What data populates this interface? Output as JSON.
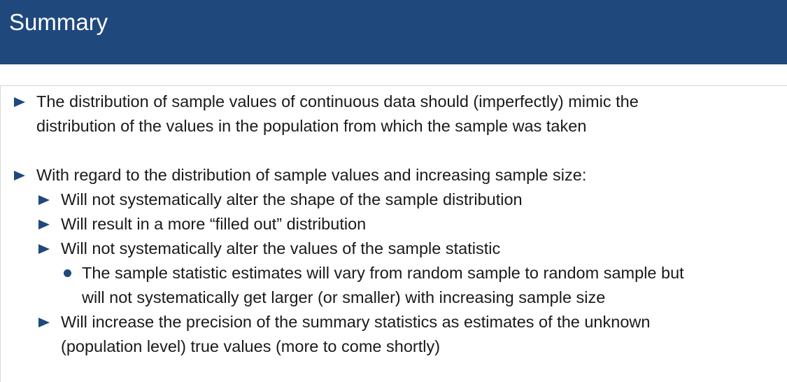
{
  "slide": {
    "title": "Summary"
  },
  "bullets": [
    {
      "line1": "The distribution of sample values of continuous data should (imperfectly) mimic the",
      "line2": "distribution of the values in the population from which the sample was taken"
    },
    {
      "line1": "With regard to the distribution of sample values and increasing sample size:",
      "subitems": [
        {
          "text": "Will not systematically alter the shape of the sample distribution"
        },
        {
          "text": "Will result in a more “filled out” distribution"
        },
        {
          "text": "Will not systematically alter the values of the sample statistic",
          "subitems": [
            {
              "line1": "The sample statistic estimates will vary from random sample to random sample but",
              "line2": "will not systematically get larger (or smaller) with increasing sample size"
            }
          ]
        },
        {
          "line1": "Will increase the precision of the summary statistics as estimates of the unknown",
          "line2": "(population level) true values (more to come shortly)"
        }
      ]
    }
  ],
  "icons": {
    "level1_marker": "triangle-right-icon",
    "level2_marker": "triangle-right-icon",
    "level3_marker": "bullet-dot-icon"
  },
  "colors": {
    "header_background": "#1f497d",
    "title_text": "#ffffff",
    "bullet_marker": "#1f497d",
    "body_text": "#1a1a1a"
  }
}
